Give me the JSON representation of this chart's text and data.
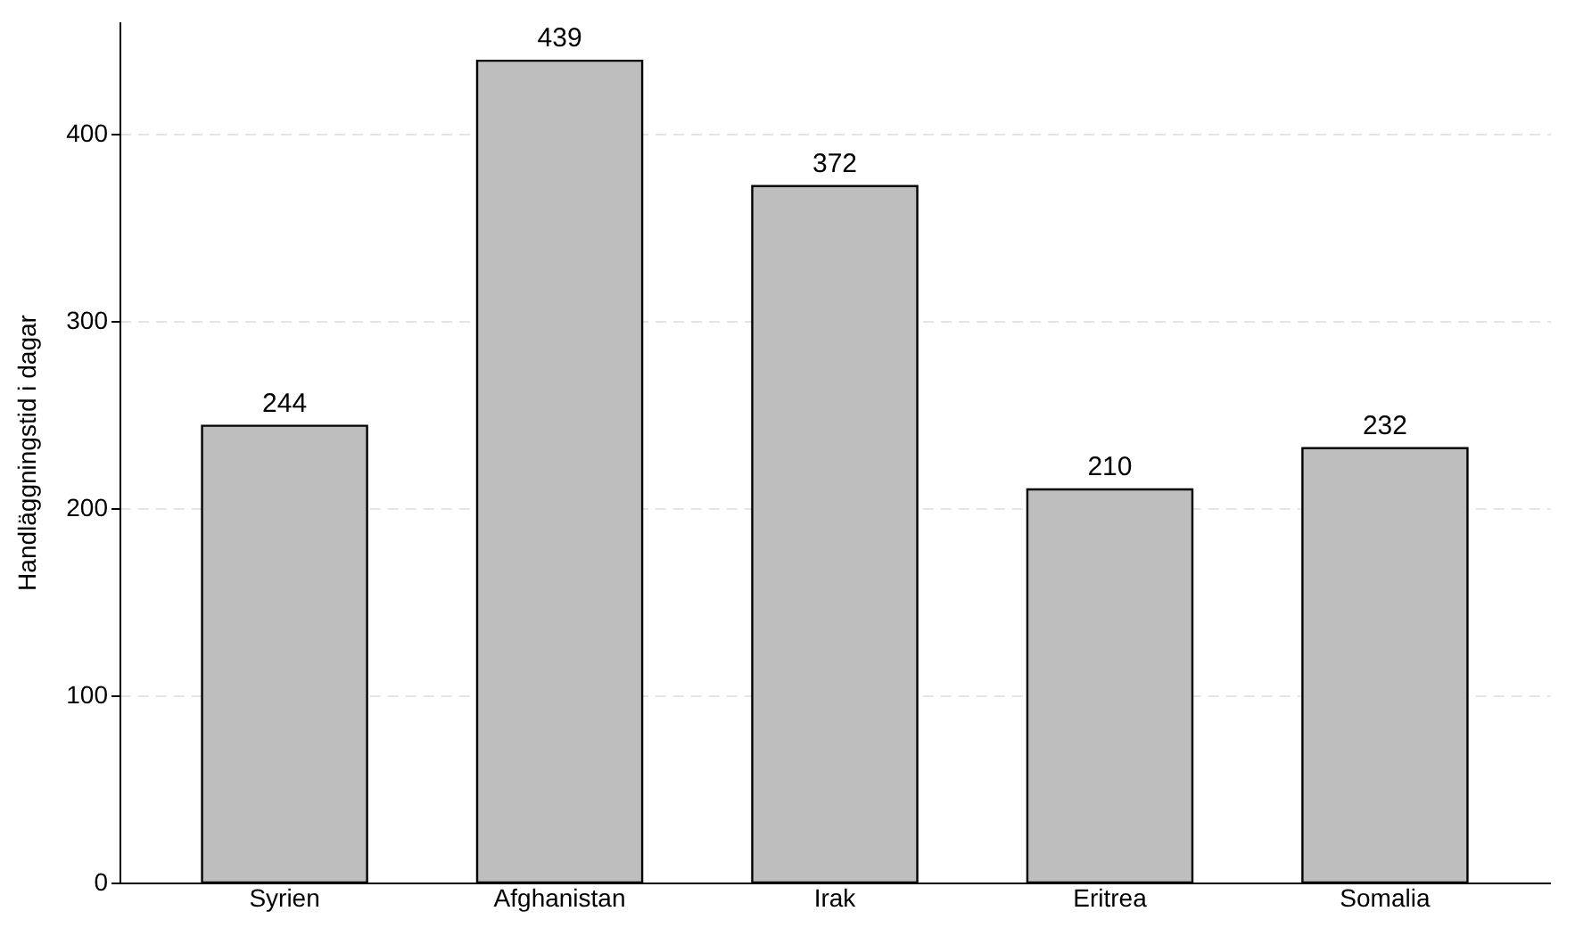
{
  "chart_data": {
    "type": "bar",
    "ylabel": "Handläggningstid i dagar",
    "categories": [
      "Syrien",
      "Afghanistan",
      "Irak",
      "Eritrea",
      "Somalia"
    ],
    "values": [
      244,
      439,
      372,
      210,
      232
    ],
    "color": "#bebebe",
    "ylim": [
      0,
      460
    ],
    "yticks": [
      0,
      100,
      200,
      300,
      400
    ],
    "grid": "y",
    "data_labels": true
  }
}
